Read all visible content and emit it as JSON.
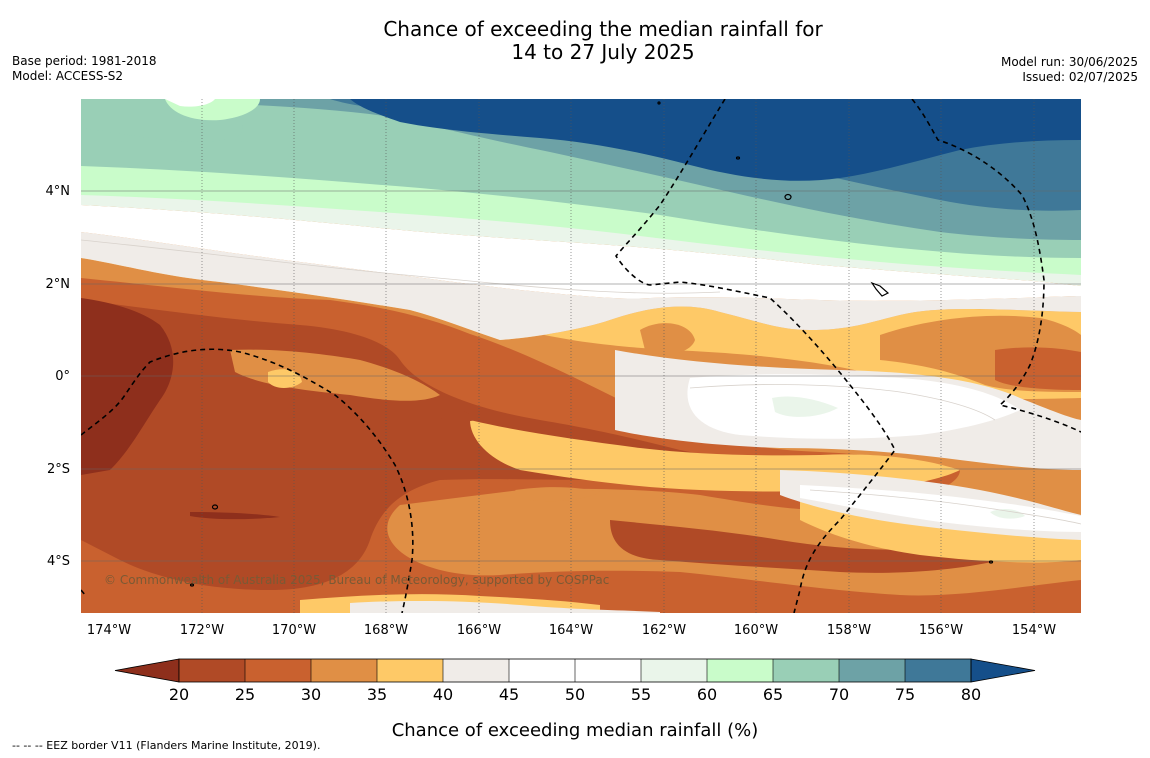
{
  "title": {
    "line1": "Chance of exceeding the median rainfall for",
    "line2": "14 to 27 July 2025"
  },
  "meta_left": {
    "base_period": "Base period: 1981-2018",
    "model": "Model: ACCESS-S2"
  },
  "meta_right": {
    "model_run": "Model run: 30/06/2025",
    "issued": "Issued: 02/07/2025"
  },
  "map": {
    "lat_labels": [
      "4°N",
      "2°N",
      "0°",
      "2°S",
      "4°S"
    ],
    "lon_labels": [
      "174°W",
      "172°W",
      "170°W",
      "168°W",
      "166°W",
      "164°W",
      "162°W",
      "160°W",
      "158°W",
      "156°W",
      "154°W"
    ],
    "copyright": "© Commonwealth of Australia 2025, Bureau of Meteorology, supported by COSPPac"
  },
  "colorbar": {
    "ticks": [
      "20",
      "25",
      "30",
      "35",
      "40",
      "45",
      "50",
      "55",
      "60",
      "65",
      "70",
      "75",
      "80"
    ],
    "colors": [
      "#8e2f1c",
      "#b04a26",
      "#c9612f",
      "#e08f45",
      "#fec967",
      "#f0ece8",
      "#ffffff",
      "#ffffff",
      "#eaf5ea",
      "#c9fcca",
      "#99cfb6",
      "#6da2a6",
      "#3f7898",
      "#154f8a"
    ],
    "label": "Chance of exceeding median rainfall (%)"
  },
  "footnote": "--  --  -- EEZ border V11 (Flanders Marine Institute, 2019)."
}
